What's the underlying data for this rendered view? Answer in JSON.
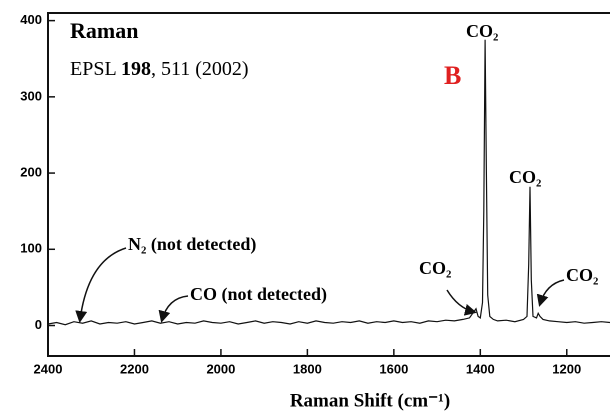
{
  "chart_data": {
    "type": "line",
    "label_title": "Raman",
    "reference": {
      "prefix": "EPSL",
      "volume": "198",
      "rest": ", 511 (2002)"
    },
    "panel_label": "B",
    "xlabel": "Raman Shift (cm⁻¹)",
    "xlim": [
      2400,
      1100
    ],
    "xticks": [
      2400,
      2200,
      2000,
      1800,
      1600,
      1400,
      1200
    ],
    "ylim": [
      -40,
      410
    ],
    "yticks": [
      0,
      100,
      200,
      300,
      400
    ],
    "annotations": [
      "CO₂",
      "CO₂",
      "CO₂",
      "CO₂",
      "N₂ (not detected)",
      "CO (not detected)"
    ],
    "series": [
      {
        "color": "#111111",
        "x": [
          2400,
          2380,
          2360,
          2340,
          2320,
          2300,
          2280,
          2260,
          2240,
          2220,
          2200,
          2180,
          2160,
          2140,
          2120,
          2100,
          2080,
          2060,
          2040,
          2020,
          2000,
          1980,
          1960,
          1940,
          1920,
          1900,
          1880,
          1860,
          1840,
          1820,
          1800,
          1780,
          1760,
          1740,
          1720,
          1700,
          1680,
          1660,
          1640,
          1620,
          1600,
          1580,
          1560,
          1540,
          1520,
          1500,
          1480,
          1460,
          1440,
          1425,
          1415,
          1410,
          1405,
          1400,
          1395,
          1392,
          1389,
          1386,
          1383,
          1378,
          1370,
          1360,
          1340,
          1320,
          1300,
          1292,
          1288,
          1285,
          1282,
          1278,
          1270,
          1266,
          1262,
          1255,
          1240,
          1220,
          1200,
          1180,
          1160,
          1140,
          1120,
          1100
        ],
        "values": [
          2,
          4,
          1,
          5,
          3,
          6,
          2,
          4,
          3,
          5,
          2,
          4,
          6,
          3,
          5,
          2,
          4,
          3,
          6,
          4,
          3,
          5,
          2,
          4,
          6,
          3,
          5,
          4,
          2,
          5,
          3,
          6,
          4,
          3,
          5,
          4,
          6,
          3,
          5,
          4,
          6,
          4,
          5,
          3,
          6,
          5,
          7,
          6,
          8,
          10,
          18,
          22,
          12,
          10,
          30,
          150,
          375,
          200,
          40,
          12,
          8,
          6,
          7,
          5,
          8,
          12,
          80,
          182,
          60,
          12,
          10,
          16,
          12,
          8,
          6,
          5,
          4,
          5,
          3,
          4,
          5,
          4
        ]
      }
    ]
  }
}
